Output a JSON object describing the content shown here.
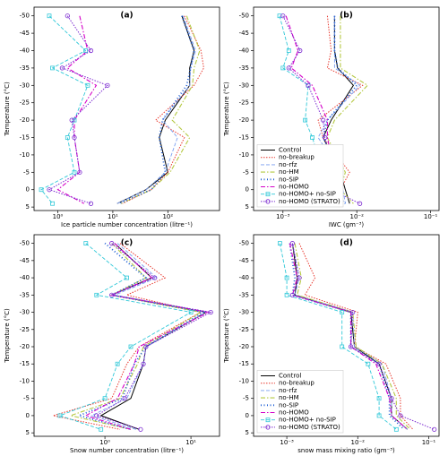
{
  "chart_data": [
    {
      "type": "line",
      "title": "(a)",
      "xlabel": "Ice particle number concentration (litre⁻¹)",
      "ylabel": "Temperature (°C)",
      "xscale": "log",
      "xlim": [
        0.37,
        870
      ],
      "xticks": [
        {
          "value": 1,
          "label": "10⁰"
        },
        {
          "value": 10,
          "label": "10¹"
        },
        {
          "value": 100,
          "label": "10²"
        }
      ],
      "ylim": [
        6,
        -52.5
      ],
      "yticks": [
        -50,
        -45,
        -40,
        -35,
        -30,
        -25,
        -20,
        -15,
        -10,
        -5,
        0,
        5
      ],
      "y": [
        -50,
        -40,
        -35,
        -30,
        -20,
        -15,
        -5,
        0,
        4
      ],
      "legend": false,
      "series": [
        {
          "name": "Control",
          "color": "#000000",
          "linestyle": "solid",
          "values": [
            180,
            300,
            250,
            250,
            90,
            70,
            100,
            40,
            12
          ]
        },
        {
          "name": "no-breakup",
          "color": "#e8392f",
          "linestyle": "dotted",
          "values": [
            200,
            400,
            450,
            300,
            60,
            200,
            100,
            50,
            15
          ]
        },
        {
          "name": "no-rfz",
          "color": "#7a9ef0",
          "linestyle": "dashed",
          "values": [
            190,
            320,
            260,
            250,
            80,
            150,
            90,
            40,
            12
          ]
        },
        {
          "name": "no-HM",
          "color": "#b5c942",
          "linestyle": "dashdot",
          "values": [
            220,
            380,
            300,
            280,
            120,
            250,
            110,
            50,
            14
          ]
        },
        {
          "name": "no-SIP",
          "color": "#1f5fd6",
          "linestyle": "dots",
          "values": [
            180,
            300,
            260,
            220,
            80,
            70,
            90,
            50,
            13
          ]
        },
        {
          "name": "no-HOMO",
          "color": "#d400c8",
          "linestyle": "dashdot",
          "values": [
            2.5,
            3.5,
            1.5,
            5,
            2,
            2,
            2.5,
            1,
            3
          ]
        },
        {
          "name": "no-HOMO+ no-SIP",
          "color": "#30c8d8",
          "linestyle": "dashed",
          "marker": "square",
          "values": [
            0.7,
            3.2,
            0.8,
            3.5,
            2,
            1.5,
            2,
            0.5,
            0.8
          ]
        },
        {
          "name": "no-HOMO (STRATO)",
          "color": "#7a28d0",
          "linestyle": "dotted",
          "marker": "circle",
          "values": [
            1.5,
            4,
            1.2,
            8,
            1.8,
            2,
            2.5,
            0.7,
            4
          ]
        }
      ]
    },
    {
      "type": "line",
      "title": "(b)",
      "xlabel": "IWC (gm⁻³)",
      "ylabel": "Temperature (°C)",
      "xscale": "log",
      "xlim": [
        0.0004,
        0.13
      ],
      "xticks": [
        {
          "value": 0.001,
          "label": "10⁻³"
        },
        {
          "value": 0.01,
          "label": "10⁻²"
        },
        {
          "value": 0.1,
          "label": "10⁻¹"
        }
      ],
      "ylim": [
        6,
        -52.5
      ],
      "yticks": [
        -50,
        -45,
        -40,
        -35,
        -30,
        -25,
        -20,
        -15,
        -10,
        -5,
        0,
        5
      ],
      "y": [
        -50,
        -40,
        -35,
        -30,
        -20,
        -15,
        -5,
        0,
        4
      ],
      "legend": "lower left",
      "series": [
        {
          "name": "Control",
          "color": "#000000",
          "linestyle": "solid",
          "values": [
            0.005,
            0.005,
            0.0055,
            0.009,
            0.0045,
            0.0035,
            0.006,
            0.007,
            0.008
          ]
        },
        {
          "name": "no-breakup",
          "color": "#e8392f",
          "linestyle": "dotted",
          "values": [
            0.004,
            0.0045,
            0.004,
            0.012,
            0.003,
            0.0035,
            0.008,
            0.006,
            0.0065
          ]
        },
        {
          "name": "no-rfz",
          "color": "#7a9ef0",
          "linestyle": "dashed",
          "values": [
            0.005,
            0.005,
            0.005,
            0.011,
            0.004,
            0.003,
            0.006,
            0.0065,
            0.007
          ]
        },
        {
          "name": "no-HM",
          "color": "#b5c942",
          "linestyle": "dashdot",
          "values": [
            0.006,
            0.006,
            0.006,
            0.014,
            0.005,
            0.004,
            0.007,
            0.006,
            0.009
          ]
        },
        {
          "name": "no-SIP",
          "color": "#1f5fd6",
          "linestyle": "dots",
          "values": [
            0.005,
            0.005,
            0.0055,
            0.01,
            0.004,
            0.0035,
            0.006,
            0.0045,
            0.007
          ]
        },
        {
          "name": "no-HOMO",
          "color": "#d400c8",
          "linestyle": "dashdot",
          "values": [
            0.0011,
            0.0016,
            0.0013,
            0.0025,
            0.004,
            0.004,
            0.005,
            0.004,
            0.006
          ]
        },
        {
          "name": "no-HOMO+ no-SIP",
          "color": "#30c8d8",
          "linestyle": "dashed",
          "marker": "square",
          "values": [
            0.0009,
            0.0012,
            0.001,
            0.0022,
            0.002,
            0.0025,
            0.0035,
            0.0025,
            0.004
          ]
        },
        {
          "name": "no-HOMO (STRATO)",
          "color": "#7a28d0",
          "linestyle": "dotted",
          "marker": "circle",
          "values": [
            0.001,
            0.0017,
            0.0012,
            0.0022,
            0.0035,
            0.0037,
            0.005,
            0.0045,
            0.011
          ]
        }
      ]
    },
    {
      "type": "line",
      "title": "(c)",
      "xlabel": "Snow number concentration (litre⁻¹)",
      "ylabel": "Temperature (°C)",
      "xscale": "log",
      "xlim": [
        0.15,
        21.5
      ],
      "xticks": [
        {
          "value": 1,
          "label": "10⁰"
        },
        {
          "value": 10,
          "label": "10¹"
        }
      ],
      "ylim": [
        6,
        -52.5
      ],
      "yticks": [
        -50,
        -45,
        -40,
        -35,
        -30,
        -25,
        -20,
        -15,
        -10,
        -5,
        0,
        5
      ],
      "y": [
        -50,
        -40,
        -35,
        -30,
        -20,
        -15,
        -5,
        0,
        4
      ],
      "legend": false,
      "series": [
        {
          "name": "Control",
          "color": "#000000",
          "linestyle": "solid",
          "values": [
            1.3,
            3.5,
            1.2,
            15,
            3,
            2.8,
            2,
            0.9,
            2.5
          ]
        },
        {
          "name": "no-breakup",
          "color": "#e8392f",
          "linestyle": "dotted",
          "values": [
            1.5,
            5,
            1.8,
            13,
            2.5,
            1.8,
            1.2,
            0.25,
            1.5
          ]
        },
        {
          "name": "no-rfz",
          "color": "#7a9ef0",
          "linestyle": "dashed",
          "values": [
            1.4,
            4,
            1.3,
            15,
            3,
            2.8,
            1.8,
            0.7,
            2.3
          ]
        },
        {
          "name": "no-HM",
          "color": "#b5c942",
          "linestyle": "dashdot",
          "values": [
            1.2,
            3,
            1.2,
            13,
            2.8,
            2.4,
            1.5,
            0.4,
            2
          ]
        },
        {
          "name": "no-SIP",
          "color": "#1f5fd6",
          "linestyle": "dots",
          "values": [
            1,
            3,
            1.2,
            14,
            3,
            2.2,
            1.6,
            0.5,
            2
          ]
        },
        {
          "name": "no-HOMO",
          "color": "#d400c8",
          "linestyle": "dashdot",
          "values": [
            1.3,
            3.5,
            1.2,
            16,
            2.5,
            2.2,
            1.4,
            0.6,
            2
          ]
        },
        {
          "name": "no-HOMO+ no-SIP",
          "color": "#30c8d8",
          "linestyle": "dashed",
          "marker": "square",
          "values": [
            0.6,
            1.8,
            0.8,
            10,
            2,
            1.4,
            1,
            0.3,
            0.9
          ]
        },
        {
          "name": "no-HOMO (STRATO)",
          "color": "#7a28d0",
          "linestyle": "dotted",
          "marker": "circle",
          "values": [
            1.2,
            3.8,
            1.2,
            17,
            3,
            2.8,
            1.7,
            0.8,
            2.6
          ]
        }
      ]
    },
    {
      "type": "line",
      "title": "(d)",
      "xlabel": "snow mass mixing ratio (gm⁻³)",
      "ylabel": "Temperature (°C)",
      "xscale": "log",
      "xlim": [
        0.00034,
        0.14
      ],
      "xticks": [
        {
          "value": 0.001,
          "label": "10⁻³"
        },
        {
          "value": 0.01,
          "label": "10⁻²"
        },
        {
          "value": 0.1,
          "label": "10⁻¹"
        }
      ],
      "ylim": [
        6,
        -52.5
      ],
      "yticks": [
        -50,
        -45,
        -40,
        -35,
        -30,
        -25,
        -20,
        -15,
        -10,
        -5,
        0,
        5
      ],
      "y": [
        -50,
        -40,
        -35,
        -30,
        -20,
        -15,
        -5,
        0,
        4
      ],
      "legend": "lower left",
      "series": [
        {
          "name": "Control",
          "color": "#000000",
          "linestyle": "solid",
          "values": [
            0.0012,
            0.0014,
            0.0013,
            0.008,
            0.009,
            0.02,
            0.03,
            0.03,
            0.05
          ]
        },
        {
          "name": "no-breakup",
          "color": "#e8392f",
          "linestyle": "dotted",
          "values": [
            0.0015,
            0.0025,
            0.0018,
            0.01,
            0.009,
            0.025,
            0.04,
            0.04,
            0.06
          ]
        },
        {
          "name": "no-rfz",
          "color": "#7a9ef0",
          "linestyle": "dashed",
          "values": [
            0.0012,
            0.0015,
            0.0013,
            0.0085,
            0.009,
            0.022,
            0.03,
            0.03,
            0.05
          ]
        },
        {
          "name": "no-HM",
          "color": "#b5c942",
          "linestyle": "dashdot",
          "values": [
            0.0013,
            0.0016,
            0.0014,
            0.0085,
            0.0095,
            0.022,
            0.035,
            0.035,
            0.055
          ]
        },
        {
          "name": "no-SIP",
          "color": "#1f5fd6",
          "linestyle": "dots",
          "values": [
            0.0011,
            0.0013,
            0.0012,
            0.008,
            0.008,
            0.02,
            0.028,
            0.028,
            0.045
          ]
        },
        {
          "name": "no-HOMO",
          "color": "#d400c8",
          "linestyle": "dashdot",
          "values": [
            0.0011,
            0.0014,
            0.0012,
            0.008,
            0.008,
            0.018,
            0.028,
            0.03,
            0.05
          ]
        },
        {
          "name": "no-HOMO+ no-SIP",
          "color": "#30c8d8",
          "linestyle": "dashed",
          "marker": "square",
          "values": [
            0.0008,
            0.001,
            0.001,
            0.006,
            0.006,
            0.014,
            0.02,
            0.02,
            0.035
          ]
        },
        {
          "name": "no-HOMO (STRATO)",
          "color": "#7a28d0",
          "linestyle": "dotted",
          "marker": "circle",
          "values": [
            0.0012,
            0.0015,
            0.0012,
            0.0085,
            0.008,
            0.02,
            0.03,
            0.04,
            0.12
          ]
        }
      ]
    }
  ]
}
